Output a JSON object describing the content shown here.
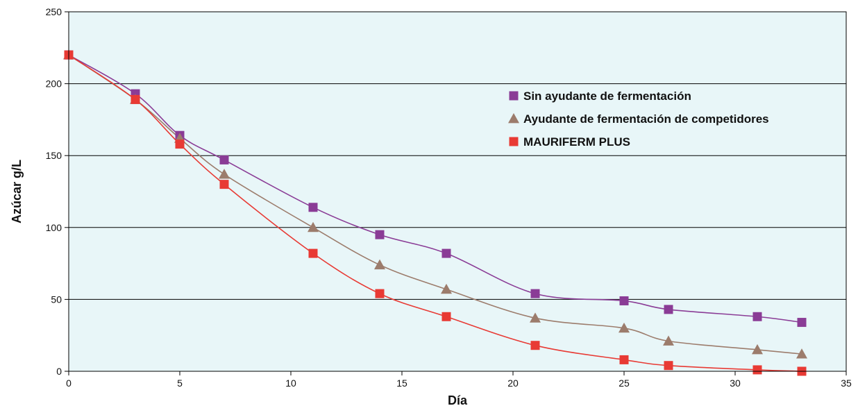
{
  "chart_data": {
    "type": "line",
    "xlabel": "Día",
    "ylabel": "Azúcar g/L",
    "xlim": [
      0,
      35
    ],
    "ylim": [
      0,
      250
    ],
    "xticks": [
      0,
      5,
      10,
      15,
      20,
      25,
      30,
      35
    ],
    "yticks": [
      0,
      50,
      100,
      150,
      200,
      250
    ],
    "grid": "horizontal",
    "legend_position": "top-right",
    "plot_background": "#e8f6f8",
    "series": [
      {
        "name": "Sin ayudante de fermentación",
        "marker": "square",
        "color": "#8a3c96",
        "x": [
          0,
          3,
          5,
          7,
          11,
          14,
          17,
          21,
          25,
          27,
          31,
          33
        ],
        "y": [
          220,
          193,
          164,
          147,
          114,
          95,
          82,
          54,
          49,
          43,
          38,
          34
        ]
      },
      {
        "name": "Ayudante de fermentación de competidores",
        "marker": "triangle",
        "color": "#9c7c6c",
        "x": [
          0,
          3,
          5,
          7,
          11,
          14,
          17,
          21,
          25,
          27,
          31,
          33
        ],
        "y": [
          220,
          189,
          162,
          137,
          100,
          74,
          57,
          37,
          30,
          21,
          15,
          12
        ]
      },
      {
        "name": "MAURIFERM PLUS",
        "marker": "square",
        "color": "#e83a34",
        "x": [
          0,
          3,
          5,
          7,
          11,
          14,
          17,
          21,
          25,
          27,
          31,
          33
        ],
        "y": [
          220,
          189,
          158,
          130,
          82,
          54,
          38,
          18,
          8,
          4,
          1,
          0
        ]
      }
    ]
  }
}
